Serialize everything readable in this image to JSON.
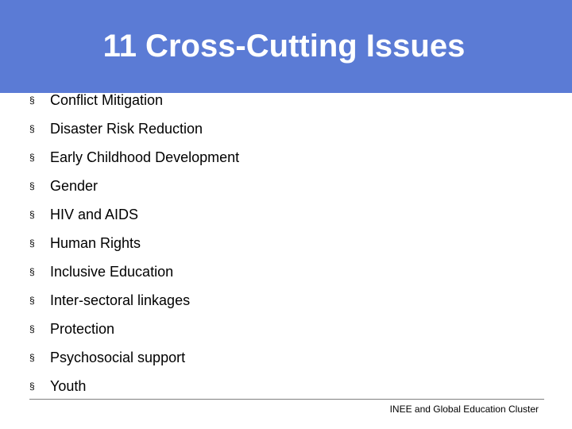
{
  "slide": {
    "title": "11 Cross-Cutting Issues",
    "bullet_marker": "§",
    "bullets": [
      "Conflict Mitigation",
      "Disaster Risk Reduction",
      "Early Childhood Development",
      "Gender",
      "HIV and AIDS",
      "Human Rights",
      "Inclusive Education",
      "Inter-sectoral linkages",
      "Protection",
      "Psychosocial support",
      "Youth"
    ],
    "footer": "INEE and Global Education Cluster"
  },
  "colors": {
    "title_bar": "#5b7bd5",
    "title_text": "#ffffff",
    "body_text": "#000000",
    "footer_rule": "#808080"
  }
}
